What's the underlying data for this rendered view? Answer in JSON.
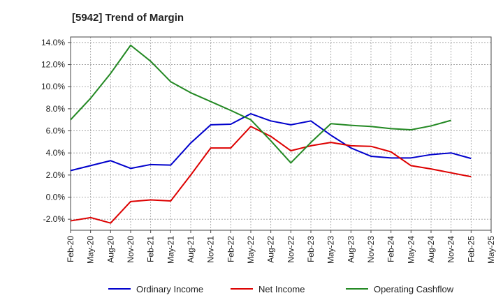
{
  "chart_data": {
    "type": "line",
    "title": "[5942]  Trend of Margin",
    "xlabel": "",
    "ylabel": "",
    "x": [
      "Feb-20",
      "May-20",
      "Aug-20",
      "Nov-20",
      "Feb-21",
      "May-21",
      "Aug-21",
      "Nov-21",
      "Feb-22",
      "May-22",
      "Aug-22",
      "Nov-22",
      "Feb-23",
      "May-23",
      "Aug-23",
      "Nov-23",
      "Feb-24",
      "May-24",
      "Aug-24",
      "Nov-24",
      "Feb-25",
      "May-25"
    ],
    "ylim": [
      -3,
      14.5
    ],
    "yticks": [
      -2,
      0,
      2,
      4,
      6,
      8,
      10,
      12,
      14
    ],
    "ytick_labels": [
      "-2.0%",
      "0.0%",
      "2.0%",
      "4.0%",
      "6.0%",
      "8.0%",
      "10.0%",
      "12.0%",
      "14.0%"
    ],
    "grid": true,
    "legend_position": "bottom",
    "series": [
      {
        "name": "Ordinary Income",
        "color": "#0000cc",
        "values": [
          2.4,
          2.85,
          3.3,
          2.6,
          2.95,
          2.9,
          4.9,
          6.55,
          6.6,
          7.55,
          6.9,
          6.55,
          6.9,
          5.6,
          4.45,
          3.7,
          3.55,
          3.55,
          3.85,
          4.0,
          3.5,
          null
        ]
      },
      {
        "name": "Net Income",
        "color": "#dd0000",
        "values": [
          -2.15,
          -1.85,
          -2.35,
          -0.4,
          -0.25,
          -0.35,
          2.0,
          4.45,
          4.45,
          6.4,
          5.5,
          4.2,
          4.65,
          4.95,
          4.65,
          4.6,
          4.1,
          2.85,
          2.55,
          2.2,
          1.85,
          null
        ]
      },
      {
        "name": "Operating Cashflow",
        "color": "#228822",
        "values": [
          7.0,
          8.95,
          11.2,
          13.75,
          12.3,
          10.45,
          9.45,
          8.65,
          7.85,
          7.0,
          5.1,
          3.1,
          4.95,
          6.65,
          6.5,
          6.4,
          6.2,
          6.1,
          6.45,
          6.95,
          null,
          null
        ]
      }
    ]
  }
}
